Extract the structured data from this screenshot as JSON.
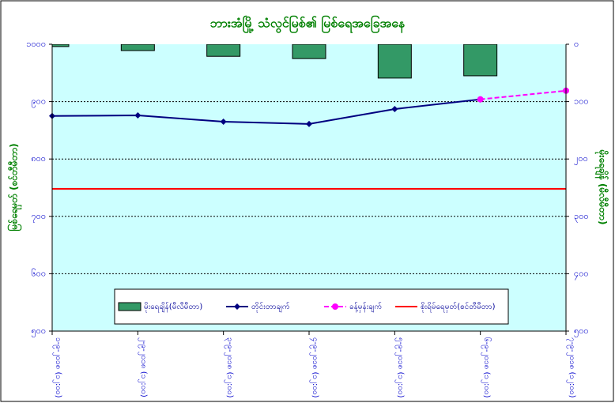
{
  "chart_data": {
    "type": "bar_line",
    "title": "ဘားအံမြို့ သံလွင်မြစ်၏ မြစ်ရေအခြေအနေ",
    "y_label": "မြစ်ရေမှတ် (စင်တီမီတာ)",
    "y2_label": "မိုးရေချိန် (မီလီမီတာ)",
    "categories": [
      "၁-၉-၂၀၁၈ (၁၂:၀၀)",
      "၂-၉-၂၀၁၈ (၁၂:၀၀)",
      "၃-၉-၂၀၁၈ (၁၂:၀၀)",
      "၄-၉-၂၀၁၈ (၁၂:၀၀)",
      "၅-၉-၂၀၁၈ (၁၂:၀၀)",
      "၆-၉-၂၀၁၈ (၁၂:၀၀)",
      "၇-၉-၂၀၁၈ (၁၂:၀၀)"
    ],
    "ylim": [
      500,
      1000
    ],
    "yticks": [
      {
        "value": 500,
        "label": "၅၀၀"
      },
      {
        "value": 600,
        "label": "၆၀၀"
      },
      {
        "value": 700,
        "label": "၇၀၀"
      },
      {
        "value": 800,
        "label": "၈၀၀"
      },
      {
        "value": 900,
        "label": "၉၀၀"
      },
      {
        "value": 1000,
        "label": "၁၀၀၀"
      }
    ],
    "y2lim": [
      0,
      500
    ],
    "y2_reversed": true,
    "y2ticks": [
      {
        "value": 0,
        "label": "၀"
      },
      {
        "value": 100,
        "label": "၁၀၀"
      },
      {
        "value": 200,
        "label": "၂၀၀"
      },
      {
        "value": 300,
        "label": "၃၀၀"
      },
      {
        "value": 400,
        "label": "၄၀၀"
      },
      {
        "value": 500,
        "label": "၅၀၀"
      }
    ],
    "grid": true,
    "series": [
      {
        "name": "မိုးရေချိန်(မီလီမီတာ)",
        "type": "bar",
        "axis": "y2",
        "color": "#339966",
        "values": [
          4,
          11,
          21,
          25,
          59,
          55,
          null
        ]
      },
      {
        "name": "တိုင်းတာချက်",
        "type": "line",
        "color": "#000080",
        "marker": "diamond",
        "values": [
          875,
          876,
          865,
          861,
          887,
          904,
          null
        ]
      },
      {
        "name": "ခန့်မှန်းချက်",
        "type": "line",
        "color": "#ff00ff",
        "marker": "circle",
        "dashed": true,
        "values": [
          null,
          null,
          null,
          null,
          null,
          904,
          919
        ]
      }
    ],
    "reference_line": {
      "name": "စိုးရိမ်ရေမှတ်(စင်တီမီတာ)",
      "color": "#ff0000",
      "value": 748
    }
  }
}
